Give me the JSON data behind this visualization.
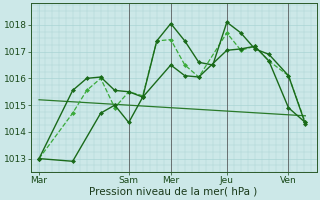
{
  "xlabel": "Pression niveau de la mer( hPa )",
  "background_color": "#cce8e8",
  "grid_color": "#aad4d4",
  "ylim": [
    1012.5,
    1018.8
  ],
  "xlim": [
    0,
    10.2
  ],
  "day_labels": [
    "Mar",
    "Sam",
    "Mer",
    "Jeu",
    "Ven"
  ],
  "day_tick_positions": [
    0.3,
    3.5,
    5.0,
    7.0,
    9.2
  ],
  "vline_positions": [
    3.5,
    5.0,
    7.0,
    9.2
  ],
  "vline_color": "#555555",
  "series": {
    "line_trend": {
      "x": [
        0.3,
        9.8
      ],
      "y": [
        1015.2,
        1014.6
      ],
      "color": "#2a7a2a",
      "lw": 0.9,
      "marker": null,
      "ms": 0,
      "ls": "-"
    },
    "line_a": {
      "x": [
        0.3,
        1.5,
        2.5,
        3.0,
        3.5,
        4.0,
        4.5,
        5.0,
        5.5,
        6.0,
        6.5,
        7.0,
        7.5,
        8.0,
        8.5,
        9.2,
        9.8
      ],
      "y": [
        1013.0,
        1012.9,
        1014.7,
        1015.0,
        1014.35,
        1015.3,
        1017.4,
        1018.05,
        1017.4,
        1016.6,
        1016.5,
        1018.1,
        1017.7,
        1017.1,
        1016.9,
        1016.1,
        1014.3
      ],
      "color": "#1a6a1a",
      "lw": 1.0,
      "marker": "D",
      "ms": 2.0,
      "ls": "-"
    },
    "line_b": {
      "x": [
        0.3,
        1.5,
        2.0,
        2.5,
        3.0,
        3.5,
        4.0,
        5.0,
        5.5,
        6.0,
        7.0,
        7.5,
        8.0,
        8.5,
        9.2,
        9.8
      ],
      "y": [
        1013.0,
        1015.55,
        1016.0,
        1016.05,
        1015.55,
        1015.5,
        1015.3,
        1016.5,
        1016.1,
        1016.05,
        1017.05,
        1017.1,
        1017.2,
        1016.65,
        1014.9,
        1014.35
      ],
      "color": "#1a6a1a",
      "lw": 1.0,
      "marker": "D",
      "ms": 2.0,
      "ls": "-"
    },
    "line_c": {
      "x": [
        0.3,
        1.5,
        2.0,
        2.5,
        3.0,
        3.5,
        4.0,
        4.5,
        5.0,
        5.5,
        6.0,
        7.0,
        7.5,
        8.0,
        8.5,
        9.2,
        9.8
      ],
      "y": [
        1013.0,
        1014.7,
        1015.55,
        1016.0,
        1014.9,
        1015.5,
        1015.35,
        1017.4,
        1017.45,
        1016.5,
        1016.05,
        1017.7,
        1017.05,
        1017.2,
        1016.65,
        1016.1,
        1014.35
      ],
      "color": "#3aaa3a",
      "lw": 0.9,
      "marker": "D",
      "ms": 2.0,
      "ls": "--"
    }
  },
  "yticks": [
    1013,
    1014,
    1015,
    1016,
    1017,
    1018
  ],
  "tick_fontsize": 6.5,
  "xlabel_fontsize": 7.5
}
